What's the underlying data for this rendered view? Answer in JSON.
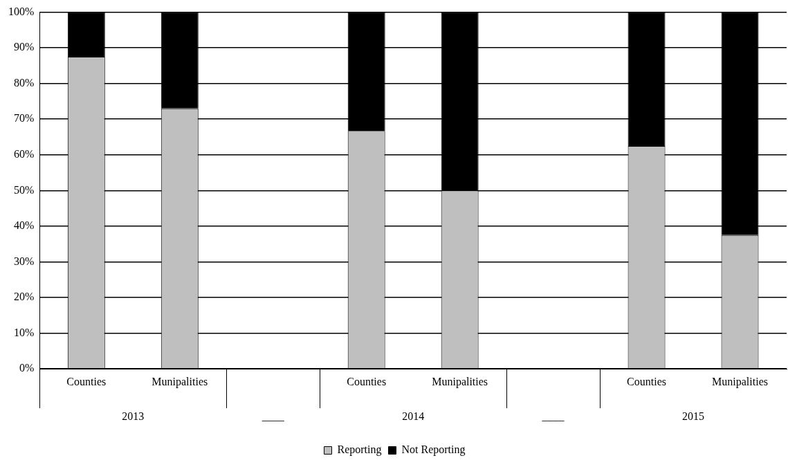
{
  "chart_data": {
    "type": "bar",
    "stacked": true,
    "categories": [
      "Counties",
      "Munipalities",
      null,
      "Counties",
      "Munipalities",
      null,
      "Counties",
      "Munipalities"
    ],
    "series": [
      {
        "name": "Reporting",
        "color": "#bfbfbf",
        "values": [
          87.5,
          73,
          null,
          66.7,
          50,
          null,
          62.5,
          37.5
        ]
      },
      {
        "name": "Not Reporting",
        "color": "#000000",
        "values": [
          12.5,
          27,
          null,
          33.3,
          50,
          null,
          37.5,
          62.5
        ]
      }
    ],
    "ylim": [
      0,
      100
    ],
    "yticks": [
      {
        "value": 0,
        "label": "0%"
      },
      {
        "value": 10,
        "label": "10%"
      },
      {
        "value": 20,
        "label": "20%"
      },
      {
        "value": 30,
        "label": "30%"
      },
      {
        "value": 40,
        "label": "40%"
      },
      {
        "value": 50,
        "label": "50%"
      },
      {
        "value": 60,
        "label": "60%"
      },
      {
        "value": 70,
        "label": "70%"
      },
      {
        "value": 80,
        "label": "80%"
      },
      {
        "value": 90,
        "label": "90%"
      },
      {
        "value": 100,
        "label": "100%"
      }
    ],
    "annotations": [
      "2013",
      "____",
      "2014",
      "____",
      "2015"
    ],
    "grid": "y",
    "legend": "bottom"
  }
}
